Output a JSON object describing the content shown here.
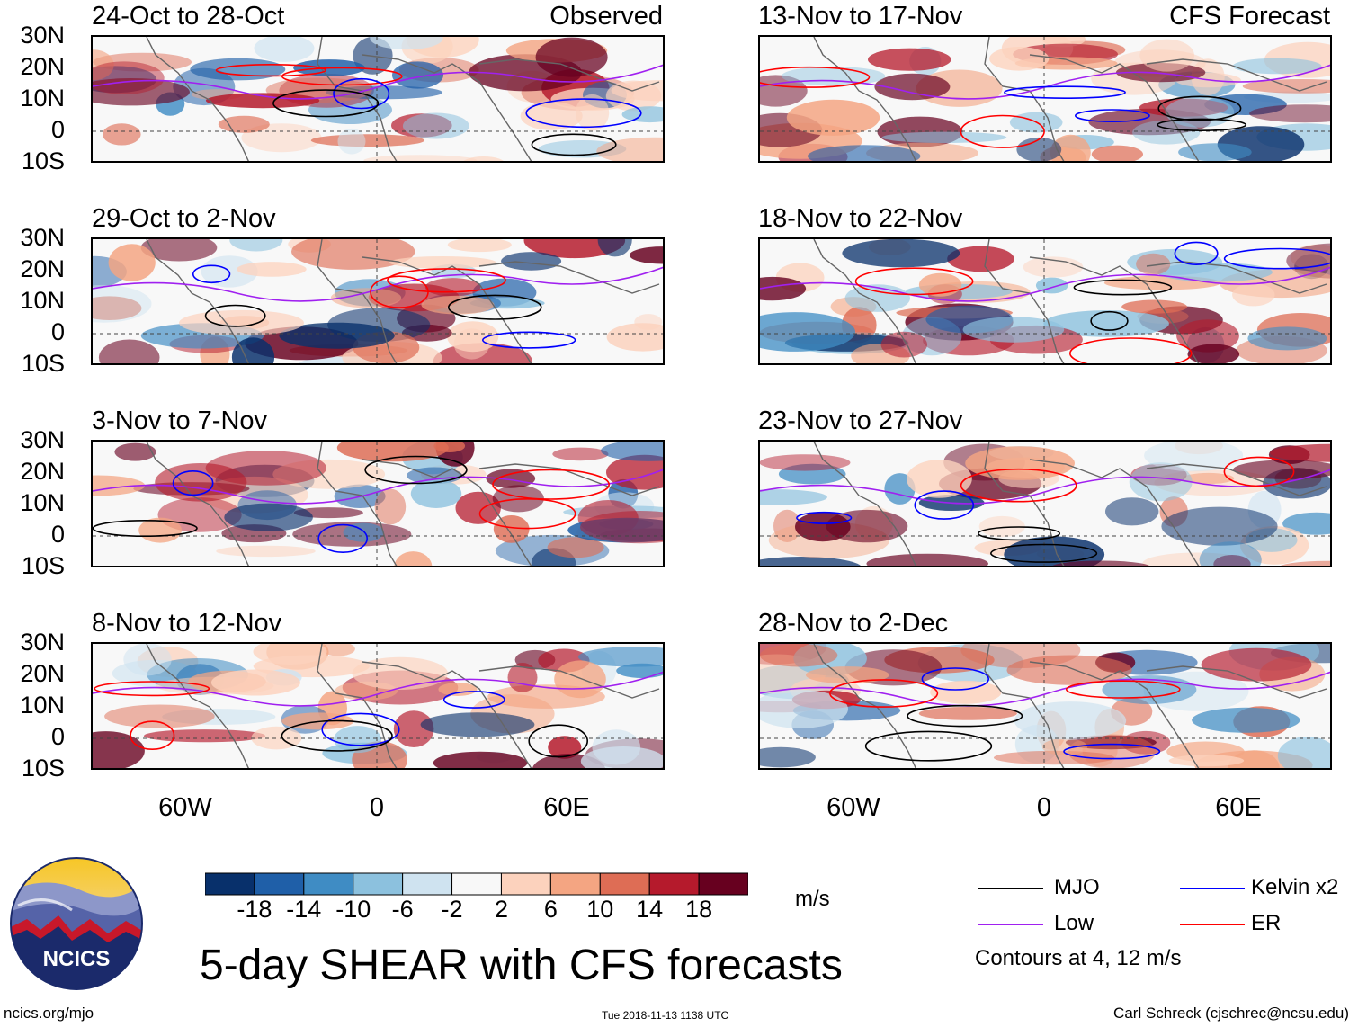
{
  "panels": {
    "observed": [
      {
        "title": "24-Oct to 28-Oct",
        "tag": "Observed"
      },
      {
        "title": "29-Oct to 2-Nov"
      },
      {
        "title": "3-Nov to 7-Nov"
      },
      {
        "title": "8-Nov to 12-Nov"
      }
    ],
    "forecast": [
      {
        "title": "13-Nov to 17-Nov",
        "tag": "CFS Forecast"
      },
      {
        "title": "18-Nov to 22-Nov"
      },
      {
        "title": "23-Nov to 27-Nov"
      },
      {
        "title": "28-Nov to 2-Dec"
      }
    ]
  },
  "lat_labels": [
    "30N",
    "20N",
    "10N",
    "0",
    "10S"
  ],
  "lon_labels": [
    "60W",
    "0",
    "60E"
  ],
  "colorbar": {
    "ticks": [
      "-18",
      "-14",
      "-10",
      "-6",
      "-2",
      "2",
      "6",
      "10",
      "14",
      "18"
    ],
    "colors": [
      "#08306b",
      "#1f5fa8",
      "#3f8cc4",
      "#8cc1de",
      "#cfe3f0",
      "#f8f8f8",
      "#fcd2bd",
      "#f4a582",
      "#de6d55",
      "#b51a2c",
      "#67001f"
    ],
    "units": "m/s"
  },
  "legend": {
    "items": [
      {
        "label": "MJO",
        "color": "#000000"
      },
      {
        "label": "Kelvin x2",
        "color": "#0000ff"
      },
      {
        "label": "Low",
        "color": "#a020f0"
      },
      {
        "label": "ER",
        "color": "#ff0000"
      }
    ],
    "contours_note": "Contours at 4, 12 m/s"
  },
  "title": "5-day SHEAR with CFS forecasts",
  "logo_text": "NCICS",
  "footer": {
    "url": "ncics.org/mjo",
    "timestamp": "Tue 2018-11-13 1138 UTC",
    "author": "Carl Schreck (cjschrec@ncsu.edu)"
  }
}
